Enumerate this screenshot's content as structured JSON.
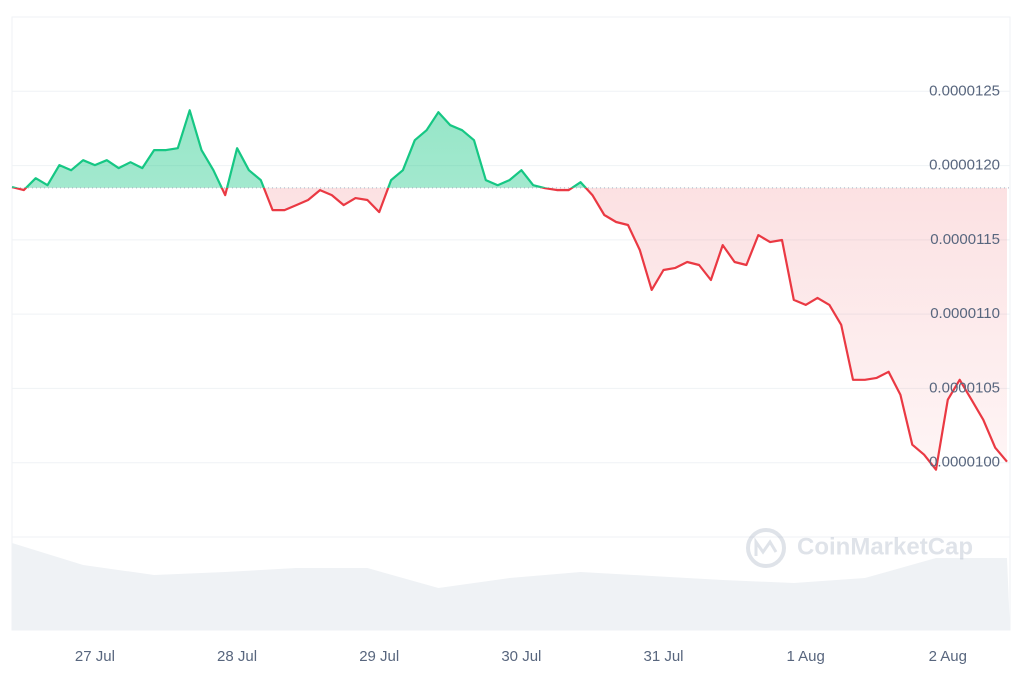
{
  "chart_data": {
    "type": "line",
    "x": [
      -14,
      -12,
      -10,
      -8,
      -6,
      -4,
      -2,
      0,
      2,
      4,
      6,
      8,
      10,
      12,
      14,
      16,
      18,
      20,
      22,
      24,
      26,
      28,
      30,
      32,
      34,
      36,
      38,
      40,
      42,
      44,
      46,
      48,
      50,
      52,
      54,
      56,
      58,
      60,
      62,
      64,
      66,
      68,
      70,
      72,
      74,
      76,
      78,
      80,
      82,
      84,
      86,
      88,
      90,
      92,
      94,
      96,
      98,
      100,
      102,
      104,
      106,
      108,
      110,
      112,
      114,
      116,
      118,
      120,
      122,
      124,
      126,
      128,
      130,
      132,
      134,
      136,
      138,
      140,
      142,
      144,
      146,
      148,
      150,
      152,
      154
    ],
    "series": [
      {
        "values": [
          1.1855e-05,
          1.1835e-05,
          1.1915e-05,
          1.1868e-05,
          1.2003e-05,
          1.1969e-05,
          1.2036e-05,
          1.2003e-05,
          1.2036e-05,
          1.1983e-05,
          1.2023e-05,
          1.1983e-05,
          1.2104e-05,
          1.2104e-05,
          1.2117e-05,
          1.2372e-05,
          1.2104e-05,
          1.1969e-05,
          1.1801e-05,
          1.2117e-05,
          1.1969e-05,
          1.1902e-05,
          1.17e-05,
          1.17e-05,
          1.1734e-05,
          1.1768e-05,
          1.1835e-05,
          1.1801e-05,
          1.1734e-05,
          1.1781e-05,
          1.1768e-05,
          1.1687e-05,
          1.1902e-05,
          1.1969e-05,
          1.2171e-05,
          1.2238e-05,
          1.2359e-05,
          1.2272e-05,
          1.2238e-05,
          1.2171e-05,
          1.1902e-05,
          1.1868e-05,
          1.1902e-05,
          1.1969e-05,
          1.1868e-05,
          1.1848e-05,
          1.1835e-05,
          1.1835e-05,
          1.1888e-05,
          1.1801e-05,
          1.1667e-05,
          1.162e-05,
          1.16e-05,
          1.1432e-05,
          1.1163e-05,
          1.1297e-05,
          1.1311e-05,
          1.1351e-05,
          1.1331e-05,
          1.123e-05,
          1.1465e-05,
          1.1351e-05,
          1.1331e-05,
          1.1532e-05,
          1.1485e-05,
          1.1499e-05,
          1.1096e-05,
          1.1062e-05,
          1.1109e-05,
          1.1062e-05,
          1.0928e-05,
          1.0558e-05,
          1.0558e-05,
          1.0571e-05,
          1.0612e-05,
          1.0457e-05,
          1.0121e-05,
          1.0054e-05,
          9.953e-06,
          1.0424e-05,
          1.0558e-05,
          1.0424e-05,
          1.0289e-05,
          1.0101e-05,
          1.0007e-05
        ]
      }
    ],
    "baseline": 1.185e-05,
    "up_color": "#16c784",
    "down_color": "#ea3943",
    "volume": {
      "x": [
        -14,
        -2,
        10,
        22,
        34,
        46,
        58,
        70,
        82,
        94,
        106,
        118,
        130,
        142,
        154
      ],
      "values": [
        87,
        65,
        55,
        58,
        62,
        62,
        42,
        52,
        58,
        54,
        50,
        47,
        52,
        72,
        72
      ],
      "color": "#eff2f5"
    },
    "xlim": [
      -14,
      154.5
    ],
    "xticks": [
      {
        "value": 0,
        "label": "27 Jul"
      },
      {
        "value": 24,
        "label": "28 Jul"
      },
      {
        "value": 48,
        "label": "29 Jul"
      },
      {
        "value": 72,
        "label": "30 Jul"
      },
      {
        "value": 96,
        "label": "31 Jul"
      },
      {
        "value": 120,
        "label": "1 Aug"
      },
      {
        "value": 144,
        "label": "2 Aug"
      }
    ],
    "ylim": [
      9.5e-06,
      1.3e-05
    ],
    "yticks": [
      {
        "value": 1e-05,
        "label": "0.0000100"
      },
      {
        "value": 1.05e-05,
        "label": "0.0000105"
      },
      {
        "value": 1.1e-05,
        "label": "0.0000110"
      },
      {
        "value": 1.15e-05,
        "label": "0.0000115"
      },
      {
        "value": 1.2e-05,
        "label": "0.0000120"
      },
      {
        "value": 1.25e-05,
        "label": "0.0000125"
      }
    ],
    "grid": true,
    "watermark": "CoinMarketCap"
  }
}
